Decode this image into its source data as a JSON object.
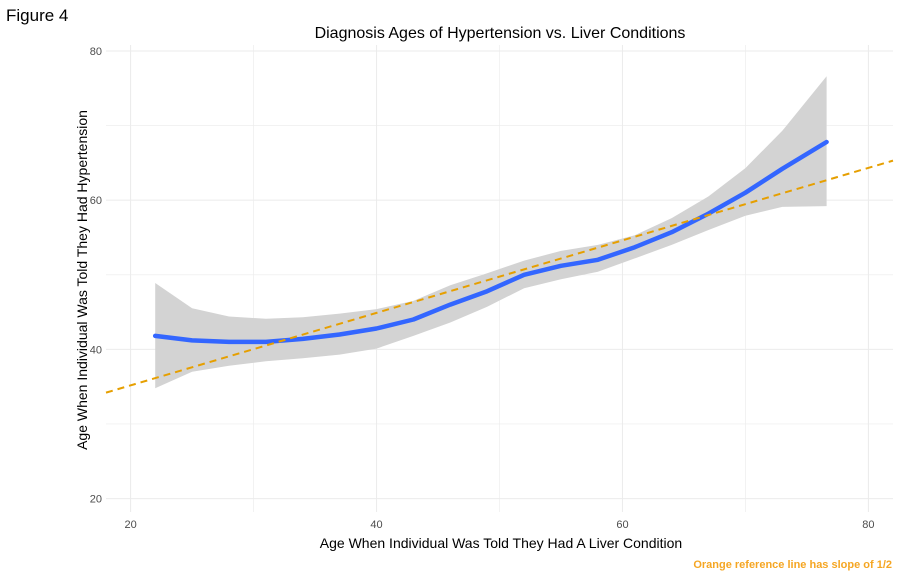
{
  "figure_label": "Figure 4",
  "chart_data": {
    "type": "line",
    "title": "Diagnosis Ages of Hypertension vs. Liver Conditions",
    "xlabel": "Age When Individual Was Told They Had A Liver Condition",
    "ylabel": "Age When Individual Was Told They Had Hypertension",
    "caption": "Orange reference line has slope of 1/2",
    "xlim": [
      18,
      82
    ],
    "ylim": [
      18.2,
      80.8
    ],
    "x_ticks": [
      20,
      40,
      60,
      80
    ],
    "y_ticks": [
      20,
      40,
      60,
      80
    ],
    "grid": true,
    "colors": {
      "smooth": "#3366ff",
      "ribbon": "#d3d3d3",
      "reference": "#e69f00",
      "grid": "#ebebeb"
    },
    "smooth": {
      "x": [
        22,
        25,
        28,
        31,
        34,
        37,
        40,
        43,
        46,
        49,
        52,
        55,
        58,
        61,
        64,
        67,
        70,
        73,
        76.6
      ],
      "y": [
        41.8,
        41.2,
        41.0,
        41.0,
        41.4,
        42.0,
        42.8,
        44.0,
        46.0,
        47.8,
        50.0,
        51.2,
        52.0,
        53.7,
        55.7,
        58.2,
        61.0,
        64.2,
        67.8
      ],
      "lower": [
        34.8,
        37.0,
        37.8,
        38.4,
        38.8,
        39.3,
        40.1,
        41.8,
        43.6,
        45.7,
        48.2,
        49.4,
        50.4,
        52.2,
        54.0,
        56.0,
        57.9,
        59.1,
        59.2
      ],
      "upper": [
        48.9,
        45.5,
        44.4,
        44.1,
        44.3,
        44.8,
        45.4,
        46.5,
        48.6,
        50.2,
        51.9,
        53.2,
        54.0,
        55.3,
        57.6,
        60.5,
        64.3,
        69.3,
        76.6
      ]
    },
    "reference_line": {
      "slope": 0.5,
      "x": [
        18,
        82
      ],
      "y": [
        34.2,
        65.3
      ]
    }
  }
}
